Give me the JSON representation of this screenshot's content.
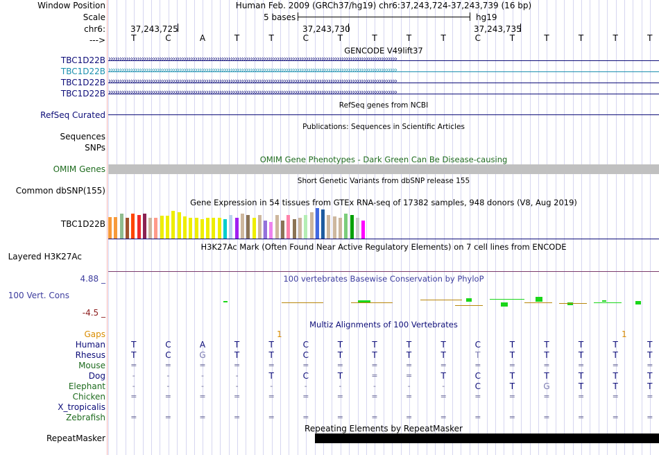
{
  "header": {
    "window_position_label": "Window Position",
    "scale_label": "Scale",
    "chrom_label": "chr6:",
    "strand_label": "--->",
    "position_text": "Human Feb. 2009 (GRCh37/hg19)   chr6:37,243,724-37,243,739 (16 bp)",
    "scale_text": "5 bases",
    "assembly": "hg19",
    "coords": [
      "37,243,725",
      "37,243,730",
      "37,243,735"
    ]
  },
  "bases": [
    "T",
    "C",
    "A",
    "T",
    "T",
    "C",
    "T",
    "T",
    "T",
    "T",
    "C",
    "T",
    "T",
    "T",
    "T",
    "T"
  ],
  "tracks": {
    "gencode": {
      "title": "GENCODE V49lift37",
      "labels": [
        "TBC1D22B",
        "TBC1D22B",
        "TBC1D22B",
        "TBC1D22B"
      ],
      "colors": [
        "#0c0c78",
        "#1a8fae",
        "#0c0c78",
        "#0c0c78"
      ]
    },
    "refseq": {
      "label": "RefSeq Curated",
      "title": "RefSeq genes from NCBI",
      "color": "#0c0c78"
    },
    "publications": {
      "label": "Sequences",
      "title": "Publications: Sequences in Scientific Articles"
    },
    "snps": {
      "label": "SNPs"
    },
    "omim": {
      "label": "OMIM Genes",
      "title": "OMIM Gene Phenotypes - Dark Green Can Be Disease-causing",
      "color": "#1e6b1e",
      "bar_color": "#c0c0c0"
    },
    "dbsnp": {
      "label": "Common dbSNP(155)",
      "title": "Short Genetic Variants from dbSNP release 155"
    },
    "gtex": {
      "label": "TBC1D22B",
      "title": "Gene Expression in 54 tissues from GTEx RNA-seq of 17382 samples, 948 donors (V8, Aug 2019)"
    },
    "h3k27ac": {
      "label": "Layered H3K27Ac",
      "title": "H3K27Ac Mark (Often Found Near Active Regulatory Elements) on 7 cell lines from ENCODE"
    },
    "conservation": {
      "label": "100 Vert. Cons",
      "max": "4.88 _",
      "min": "-4.5 _",
      "title": "100 vertebrates Basewise Conservation by PhyloP",
      "color": "#3d3d9e"
    },
    "multiz": {
      "title": "Multiz Alignments of 100 Vertebrates",
      "gaps_label": "Gaps",
      "gap_marks": [
        "1",
        "1"
      ],
      "species": [
        {
          "name": "Human",
          "color": "#0c0c78",
          "bases": [
            "T",
            "C",
            "A",
            "T",
            "T",
            "C",
            "T",
            "T",
            "T",
            "T",
            "C",
            "T",
            "T",
            "T",
            "T",
            "T"
          ]
        },
        {
          "name": "Rhesus",
          "color": "#0c0c78",
          "bases": [
            "T",
            "C",
            "G",
            "T",
            "T",
            "C",
            "T",
            "T",
            "T",
            "T",
            "T",
            "T",
            "T",
            "T",
            "T",
            "T"
          ]
        },
        {
          "name": "Mouse",
          "color": "#1e6b1e",
          "bases": [
            "=",
            "=",
            "=",
            "=",
            "=",
            "=",
            "=",
            "=",
            "=",
            "=",
            "=",
            "=",
            "=",
            "=",
            "=",
            "="
          ]
        },
        {
          "name": "Dog",
          "color": "#0c0c78",
          "bases": [
            "-",
            "-",
            "-",
            "-",
            "T",
            "C",
            "T",
            "=",
            "=",
            "T",
            "C",
            "T",
            "T",
            "T",
            "T",
            "T"
          ]
        },
        {
          "name": "Elephant",
          "color": "#1e6b1e",
          "bases": [
            "-",
            "-",
            "-",
            "-",
            "-",
            "-",
            "-",
            "-",
            "-",
            "-",
            "C",
            "T",
            "G",
            "T",
            "T",
            "T"
          ]
        },
        {
          "name": "Chicken",
          "color": "#1e6b1e",
          "bases": [
            "=",
            "=",
            "=",
            "=",
            "=",
            "=",
            "=",
            "=",
            "=",
            "=",
            "=",
            "=",
            "=",
            "=",
            "=",
            "="
          ]
        },
        {
          "name": "X_tropicalis",
          "color": "#0c0c78",
          "bases": [
            "",
            "",
            "",
            "",
            "",
            "",
            "",
            "",
            "",
            "",
            "",
            "",
            "",
            "",
            "",
            ""
          ]
        },
        {
          "name": "Zebrafish",
          "color": "#1e6b1e",
          "bases": [
            "=",
            "=",
            "=",
            "=",
            "=",
            "=",
            "=",
            "=",
            "=",
            "=",
            "=",
            "=",
            "=",
            "=",
            "=",
            "="
          ]
        }
      ]
    },
    "repeatmasker": {
      "label": "RepeatMasker",
      "title": "Repeating Elements by RepeatMasker"
    }
  },
  "colors": {
    "mismatch": "#7a7ab0",
    "separator": "#f4b3b3",
    "gaps": "#d98c00",
    "cons_min": "#8b1a1a",
    "grid": "#d6d6f0"
  }
}
